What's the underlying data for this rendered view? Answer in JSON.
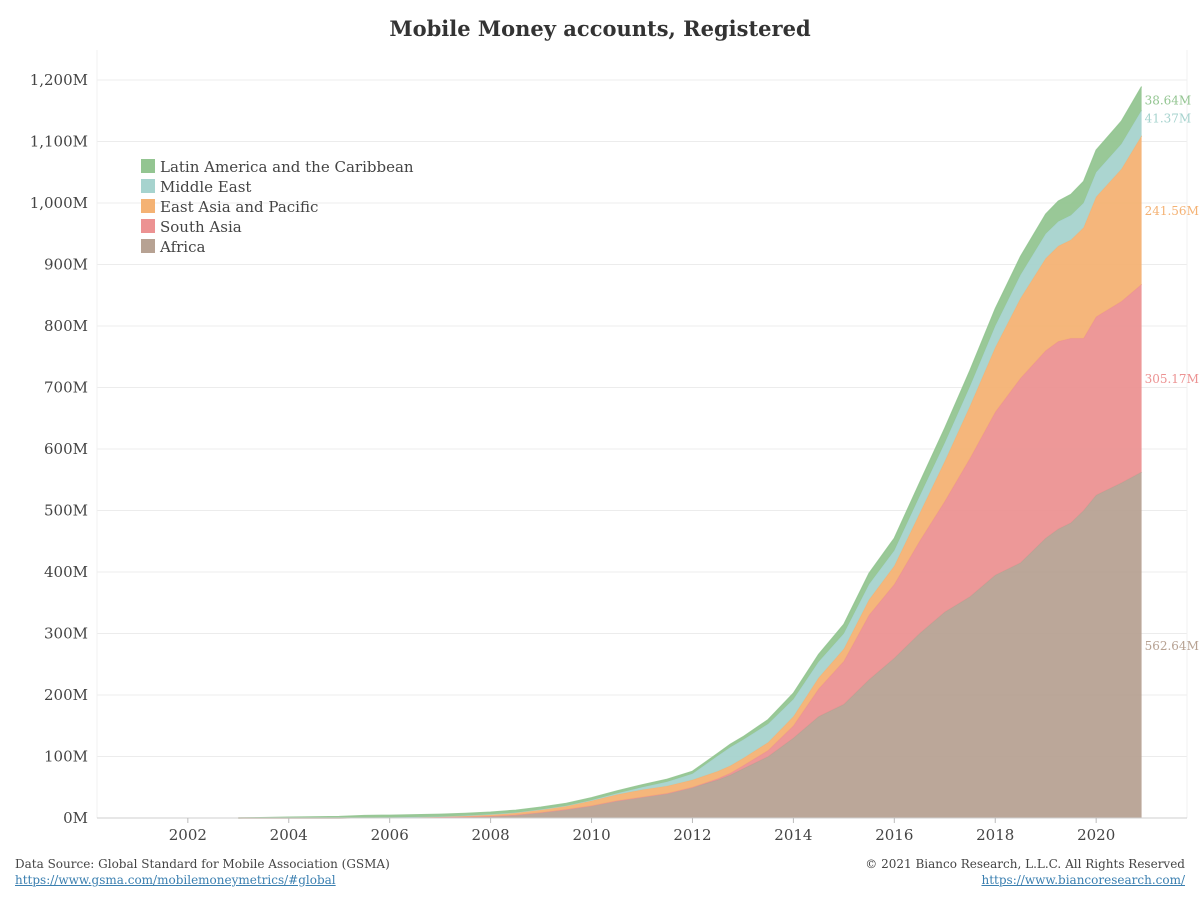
{
  "chart_data": {
    "type": "area",
    "stacked": true,
    "title": "Mobile Money accounts, Registered",
    "xlabel": "",
    "ylabel": "",
    "xlim": [
      2000.2,
      2021.8
    ],
    "ylim": [
      0,
      1220
    ],
    "x_ticks": [
      2002,
      2004,
      2006,
      2008,
      2010,
      2012,
      2014,
      2016,
      2018,
      2020
    ],
    "y_ticks": [
      0,
      100,
      200,
      300,
      400,
      500,
      600,
      700,
      800,
      900,
      1000,
      1100,
      1200
    ],
    "y_tick_labels": [
      "0M",
      "100M",
      "200M",
      "300M",
      "400M",
      "500M",
      "600M",
      "700M",
      "800M",
      "900M",
      "1,000M",
      "1,100M",
      "1,200M"
    ],
    "grid": "horizontal",
    "legend_position": "top-left",
    "x": [
      2003.0,
      2004.0,
      2005.0,
      2005.5,
      2006.0,
      2006.5,
      2007.0,
      2007.5,
      2008.0,
      2008.5,
      2009.0,
      2009.5,
      2010.0,
      2010.5,
      2011.0,
      2011.5,
      2012.0,
      2012.5,
      2012.75,
      2013.0,
      2013.5,
      2014.0,
      2014.5,
      2015.0,
      2015.5,
      2016.0,
      2016.5,
      2017.0,
      2017.5,
      2018.0,
      2018.5,
      2019.0,
      2019.25,
      2019.5,
      2019.75,
      2020.0,
      2020.5,
      2020.9
    ],
    "series": [
      {
        "name": "Africa",
        "color": "#b7a293",
        "end_label": "562.64M",
        "values": [
          0,
          0,
          0,
          0.3,
          0.6,
          1,
          1.5,
          2,
          3,
          5,
          9,
          14,
          20,
          28,
          34,
          40,
          50,
          62,
          70,
          80,
          100,
          130,
          165,
          185,
          225,
          260,
          300,
          335,
          360,
          395,
          415,
          455,
          470,
          480,
          500,
          525,
          545,
          562.64
        ]
      },
      {
        "name": "South Asia",
        "color": "#ec9292",
        "end_label": "305.17M",
        "values": [
          0,
          0,
          0,
          0,
          0,
          0,
          0,
          0,
          0,
          0,
          0,
          0,
          0,
          0,
          0,
          0,
          0,
          2,
          3,
          5,
          10,
          20,
          45,
          70,
          105,
          120,
          150,
          180,
          225,
          265,
          300,
          305,
          305,
          300,
          280,
          290,
          295,
          305.17
        ]
      },
      {
        "name": "East Asia and Pacific",
        "color": "#f4b274",
        "end_label": "241.56M",
        "values": [
          0,
          0,
          0,
          0.3,
          0.5,
          0.8,
          1,
          2,
          3,
          4,
          5,
          6,
          8,
          10,
          12,
          12,
          12,
          12,
          12,
          12,
          13,
          15,
          18,
          20,
          25,
          30,
          45,
          65,
          85,
          105,
          130,
          150,
          155,
          160,
          180,
          195,
          215,
          241.56
        ]
      },
      {
        "name": "Middle East",
        "color": "#a6d3ce",
        "end_label": "41.37M",
        "values": [
          0,
          0,
          0,
          0,
          0,
          0,
          0,
          0,
          0,
          0,
          0,
          0,
          1,
          2,
          4,
          7,
          10,
          25,
          30,
          30,
          30,
          28,
          26,
          25,
          25,
          25,
          28,
          30,
          32,
          35,
          38,
          40,
          40,
          40,
          40,
          40,
          41,
          41.37
        ]
      },
      {
        "name": "Latin America and the Caribbean",
        "color": "#93c591",
        "end_label": "38.64M",
        "values": [
          0,
          1.5,
          2.5,
          3.5,
          3.5,
          3.6,
          3.6,
          3.6,
          3.6,
          3.7,
          3.7,
          3.8,
          4,
          4,
          4,
          4,
          4,
          4,
          5,
          5,
          7,
          10,
          12,
          15,
          18,
          20,
          22,
          24,
          26,
          28,
          30,
          32,
          33,
          34,
          35,
          36,
          37,
          38.64
        ]
      }
    ]
  },
  "legend": {
    "items": [
      {
        "label": "Latin America and the Caribbean",
        "color": "#93c591"
      },
      {
        "label": "Middle East",
        "color": "#a6d3ce"
      },
      {
        "label": "East Asia and Pacific",
        "color": "#f4b274"
      },
      {
        "label": "South Asia",
        "color": "#ec9292"
      },
      {
        "label": "Africa",
        "color": "#b7a293"
      }
    ]
  },
  "footer": {
    "source_label": "Data Source: Global Standard for Mobile Association (GSMA)",
    "source_url": "https://www.gsma.com/mobilemoneymetrics/#global",
    "copyright": "© 2021 Bianco Research, L.L.C. All Rights Reserved",
    "site_url": "https://www.biancoresearch.com/"
  }
}
